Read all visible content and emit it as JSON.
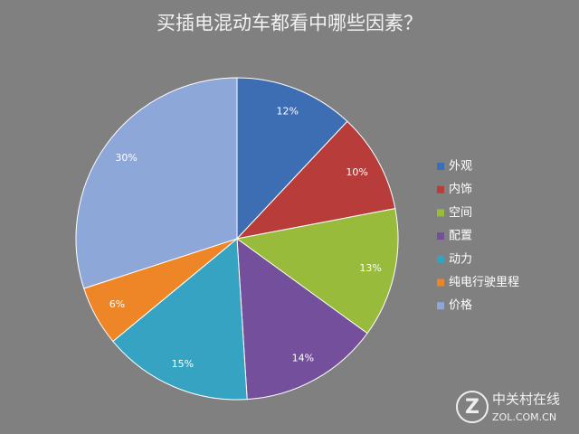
{
  "chart_data": {
    "type": "pie",
    "title": "买插电混动车都看中哪些因素？",
    "categories": [
      "外观",
      "内饰",
      "空间",
      "配置",
      "动力",
      "纯电行驶里程",
      "价格"
    ],
    "values": [
      12,
      10,
      13,
      14,
      15,
      6,
      30
    ],
    "value_labels": [
      "12%",
      "10%",
      "13%",
      "14%",
      "15%",
      "6%",
      "30%"
    ],
    "colors": [
      "#3d6eb4",
      "#b83c3a",
      "#98bb3c",
      "#74509c",
      "#35a3c1",
      "#ee8628",
      "#8ea7d9"
    ],
    "legend": "right"
  },
  "watermark": {
    "brand": "中关村在线",
    "url": "ZOL.COM.CN"
  }
}
